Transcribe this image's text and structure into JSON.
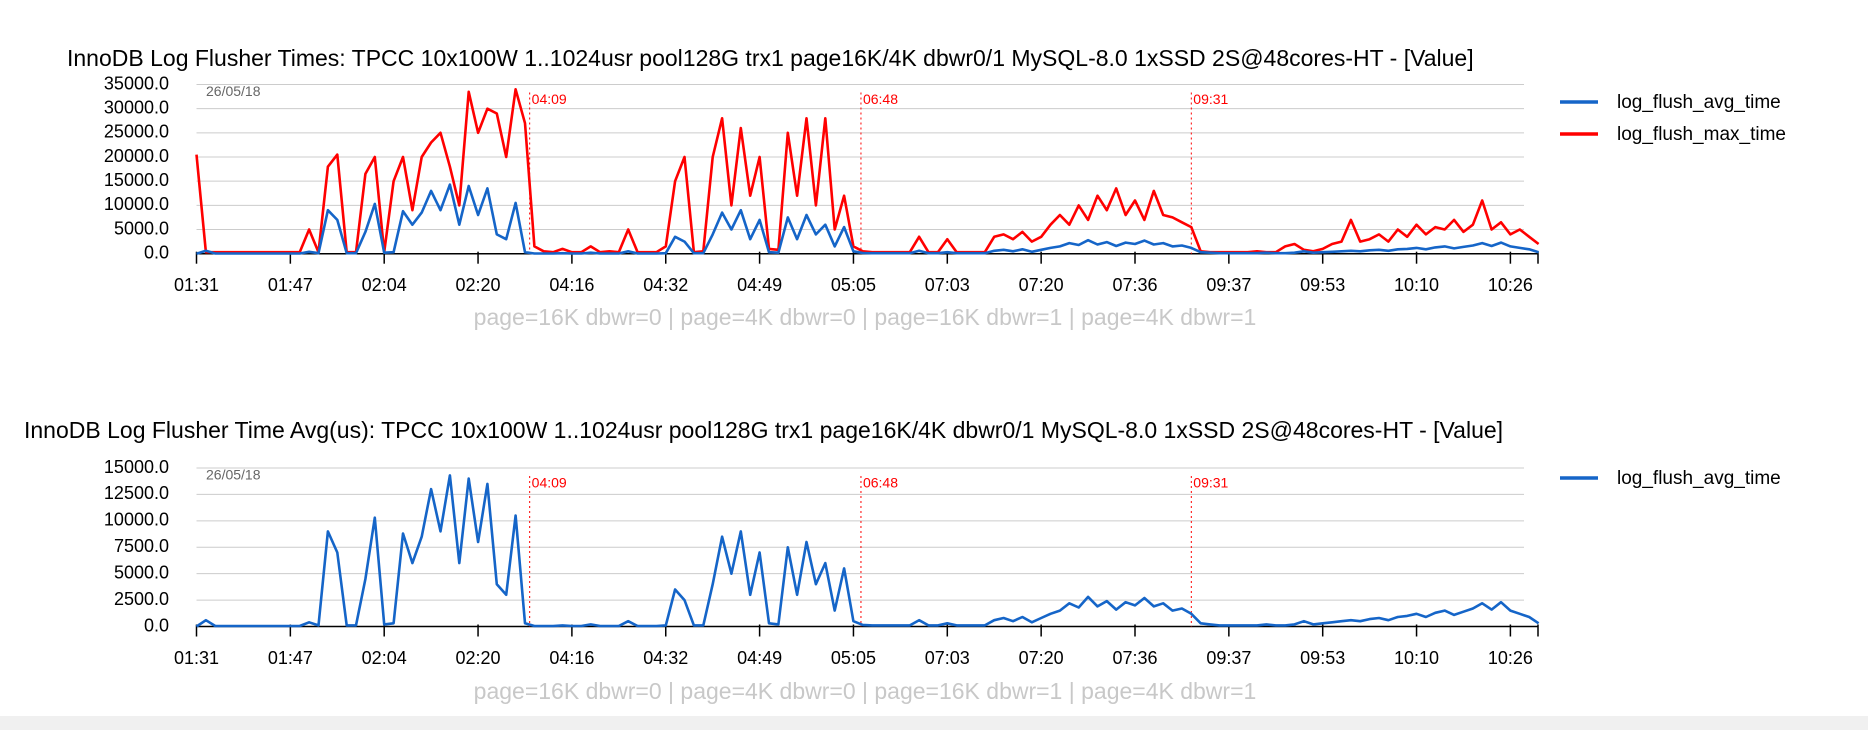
{
  "chart_data": [
    {
      "type": "line",
      "title": "InnoDB Log Flusher Times: TPCC 10x100W 1..1024usr pool128G trx1 page16K/4K dbwr0/1 MySQL-8.0 1xSSD 2S@48cores-HT - [Value]",
      "subtitle": "page=16K dbwr=0 | page=4K dbwr=0 | page=16K dbwr=1 | page=4K dbwr=1",
      "date_label": "26/05/18",
      "markers": [
        {
          "label": "04:09",
          "index": 35.5
        },
        {
          "label": "06:48",
          "index": 70.8
        },
        {
          "label": "09:31",
          "index": 106
        }
      ],
      "categories": [
        "01:31",
        null,
        null,
        null,
        null,
        null,
        null,
        null,
        null,
        null,
        "01:47",
        null,
        null,
        null,
        null,
        null,
        null,
        null,
        null,
        null,
        "02:04",
        null,
        null,
        null,
        null,
        null,
        null,
        null,
        null,
        null,
        "02:20",
        null,
        null,
        null,
        null,
        null,
        null,
        null,
        null,
        null,
        "04:16",
        null,
        null,
        null,
        null,
        null,
        null,
        null,
        null,
        null,
        "04:32",
        null,
        null,
        null,
        null,
        null,
        null,
        null,
        null,
        null,
        "04:49",
        null,
        null,
        null,
        null,
        null,
        null,
        null,
        null,
        null,
        "05:05",
        null,
        null,
        null,
        null,
        null,
        null,
        null,
        null,
        null,
        "07:03",
        null,
        null,
        null,
        null,
        null,
        null,
        null,
        null,
        null,
        "07:20",
        null,
        null,
        null,
        null,
        null,
        null,
        null,
        null,
        null,
        "07:36",
        null,
        null,
        null,
        null,
        null,
        null,
        null,
        null,
        null,
        "09:37",
        null,
        null,
        null,
        null,
        null,
        null,
        null,
        null,
        null,
        "09:53",
        null,
        null,
        null,
        null,
        null,
        null,
        null,
        null,
        null,
        "10:10",
        null,
        null,
        null,
        null,
        null,
        null,
        null,
        null,
        null,
        "10:26",
        null,
        null,
        null
      ],
      "series": [
        {
          "name": "log_flush_avg_time",
          "color": "#1565c8",
          "values": [
            0,
            600,
            50,
            50,
            50,
            50,
            50,
            50,
            50,
            50,
            50,
            50,
            400,
            100,
            9000,
            7000,
            100,
            100,
            4500,
            10300,
            200,
            300,
            8800,
            6000,
            8500,
            13000,
            9000,
            14300,
            6000,
            14000,
            8000,
            13500,
            4000,
            3000,
            10500,
            300,
            50,
            50,
            50,
            100,
            50,
            50,
            200,
            50,
            50,
            50,
            500,
            50,
            50,
            50,
            100,
            3500,
            2500,
            100,
            100,
            4000,
            8500,
            5000,
            9000,
            3000,
            7000,
            300,
            200,
            7500,
            3000,
            8000,
            4000,
            6000,
            1500,
            5500,
            500,
            150,
            100,
            100,
            100,
            100,
            100,
            600,
            100,
            100,
            300,
            100,
            100,
            100,
            100,
            600,
            800,
            500,
            900,
            400,
            800,
            1200,
            1500,
            2200,
            1800,
            2800,
            1900,
            2400,
            1600,
            2300,
            2000,
            2700,
            1900,
            2200,
            1500,
            1700,
            1200,
            300,
            200,
            100,
            100,
            100,
            100,
            100,
            200,
            100,
            100,
            200,
            500,
            200,
            300,
            400,
            500,
            600,
            500,
            700,
            800,
            600,
            900,
            1000,
            1200,
            900,
            1300,
            1500,
            1100,
            1400,
            1700,
            2200,
            1600,
            2300,
            1500,
            1200,
            900,
            300
          ]
        },
        {
          "name": "log_flush_max_time",
          "color": "#ff0000",
          "values": [
            20500,
            300,
            300,
            300,
            300,
            300,
            300,
            300,
            300,
            300,
            300,
            300,
            5000,
            300,
            18000,
            20500,
            300,
            300,
            16500,
            20000,
            300,
            15000,
            20000,
            9000,
            20000,
            23000,
            25000,
            18000,
            10000,
            33500,
            25000,
            30000,
            29000,
            20000,
            34000,
            27000,
            1500,
            500,
            300,
            1000,
            300,
            300,
            1500,
            300,
            500,
            300,
            5000,
            300,
            300,
            300,
            1500,
            15000,
            20000,
            300,
            500,
            20000,
            28000,
            10000,
            26000,
            12000,
            20000,
            1000,
            800,
            25000,
            12000,
            28000,
            10000,
            28000,
            5000,
            12000,
            1500,
            500,
            300,
            300,
            300,
            300,
            300,
            3500,
            300,
            300,
            3000,
            300,
            300,
            300,
            300,
            3500,
            4000,
            3000,
            4500,
            2500,
            3500,
            6000,
            8000,
            6000,
            10000,
            7000,
            12000,
            9000,
            13500,
            8000,
            11000,
            7000,
            13000,
            8000,
            7500,
            6500,
            5500,
            500,
            300,
            300,
            300,
            300,
            300,
            500,
            300,
            300,
            1500,
            2000,
            800,
            500,
            1000,
            2000,
            2500,
            7000,
            2500,
            3000,
            4000,
            2500,
            5000,
            3500,
            6000,
            4000,
            5500,
            5000,
            7000,
            4500,
            6000,
            11000,
            5000,
            6500,
            4000,
            5000,
            3500,
            2000
          ]
        }
      ],
      "ylim": [
        0,
        35000
      ],
      "yticks": [
        {
          "value": 0,
          "label": "0.0"
        },
        {
          "value": 5000,
          "label": "5000.0"
        },
        {
          "value": 10000,
          "label": "10000.0"
        },
        {
          "value": 15000,
          "label": "15000.0"
        },
        {
          "value": 20000,
          "label": "20000.0"
        },
        {
          "value": 25000,
          "label": "25000.0"
        },
        {
          "value": 30000,
          "label": "30000.0"
        },
        {
          "value": 35000,
          "label": "35000.0"
        }
      ],
      "grid": true,
      "legend": "right"
    },
    {
      "type": "line",
      "title": "InnoDB Log Flusher Time Avg(us): TPCC 10x100W 1..1024usr pool128G trx1 page16K/4K dbwr0/1 MySQL-8.0 1xSSD 2S@48cores-HT - [Value]",
      "subtitle": "page=16K dbwr=0 | page=4K dbwr=0 | page=16K dbwr=1 | page=4K dbwr=1",
      "date_label": "26/05/18",
      "markers": [
        {
          "label": "04:09",
          "index": 35.5
        },
        {
          "label": "06:48",
          "index": 70.8
        },
        {
          "label": "09:31",
          "index": 106
        }
      ],
      "categories": [
        "01:31",
        null,
        null,
        null,
        null,
        null,
        null,
        null,
        null,
        null,
        "01:47",
        null,
        null,
        null,
        null,
        null,
        null,
        null,
        null,
        null,
        "02:04",
        null,
        null,
        null,
        null,
        null,
        null,
        null,
        null,
        null,
        "02:20",
        null,
        null,
        null,
        null,
        null,
        null,
        null,
        null,
        null,
        "04:16",
        null,
        null,
        null,
        null,
        null,
        null,
        null,
        null,
        null,
        "04:32",
        null,
        null,
        null,
        null,
        null,
        null,
        null,
        null,
        null,
        "04:49",
        null,
        null,
        null,
        null,
        null,
        null,
        null,
        null,
        null,
        "05:05",
        null,
        null,
        null,
        null,
        null,
        null,
        null,
        null,
        null,
        "07:03",
        null,
        null,
        null,
        null,
        null,
        null,
        null,
        null,
        null,
        "07:20",
        null,
        null,
        null,
        null,
        null,
        null,
        null,
        null,
        null,
        "07:36",
        null,
        null,
        null,
        null,
        null,
        null,
        null,
        null,
        null,
        "09:37",
        null,
        null,
        null,
        null,
        null,
        null,
        null,
        null,
        null,
        "09:53",
        null,
        null,
        null,
        null,
        null,
        null,
        null,
        null,
        null,
        "10:10",
        null,
        null,
        null,
        null,
        null,
        null,
        null,
        null,
        null,
        "10:26",
        null,
        null,
        null
      ],
      "series": [
        {
          "name": "log_flush_avg_time",
          "color": "#1565c8",
          "values": [
            0,
            600,
            50,
            50,
            50,
            50,
            50,
            50,
            50,
            50,
            50,
            50,
            400,
            100,
            9000,
            7000,
            100,
            100,
            4500,
            10300,
            200,
            300,
            8800,
            6000,
            8500,
            13000,
            9000,
            14300,
            6000,
            14000,
            8000,
            13500,
            4000,
            3000,
            10500,
            300,
            50,
            50,
            50,
            100,
            50,
            50,
            200,
            50,
            50,
            50,
            500,
            50,
            50,
            50,
            100,
            3500,
            2500,
            100,
            100,
            4000,
            8500,
            5000,
            9000,
            3000,
            7000,
            300,
            200,
            7500,
            3000,
            8000,
            4000,
            6000,
            1500,
            5500,
            500,
            150,
            100,
            100,
            100,
            100,
            100,
            600,
            100,
            100,
            300,
            100,
            100,
            100,
            100,
            600,
            800,
            500,
            900,
            400,
            800,
            1200,
            1500,
            2200,
            1800,
            2800,
            1900,
            2400,
            1600,
            2300,
            2000,
            2700,
            1900,
            2200,
            1500,
            1700,
            1200,
            300,
            200,
            100,
            100,
            100,
            100,
            100,
            200,
            100,
            100,
            200,
            500,
            200,
            300,
            400,
            500,
            600,
            500,
            700,
            800,
            600,
            900,
            1000,
            1200,
            900,
            1300,
            1500,
            1100,
            1400,
            1700,
            2200,
            1600,
            2300,
            1500,
            1200,
            900,
            300
          ]
        }
      ],
      "ylim": [
        0,
        15000
      ],
      "yticks": [
        {
          "value": 0,
          "label": "0.0"
        },
        {
          "value": 2500,
          "label": "2500.0"
        },
        {
          "value": 5000,
          "label": "5000.0"
        },
        {
          "value": 7500,
          "label": "7500.0"
        },
        {
          "value": 10000,
          "label": "10000.0"
        },
        {
          "value": 12500,
          "label": "12500.0"
        },
        {
          "value": 15000,
          "label": "15000.0"
        }
      ],
      "grid": true,
      "legend": "right"
    }
  ]
}
